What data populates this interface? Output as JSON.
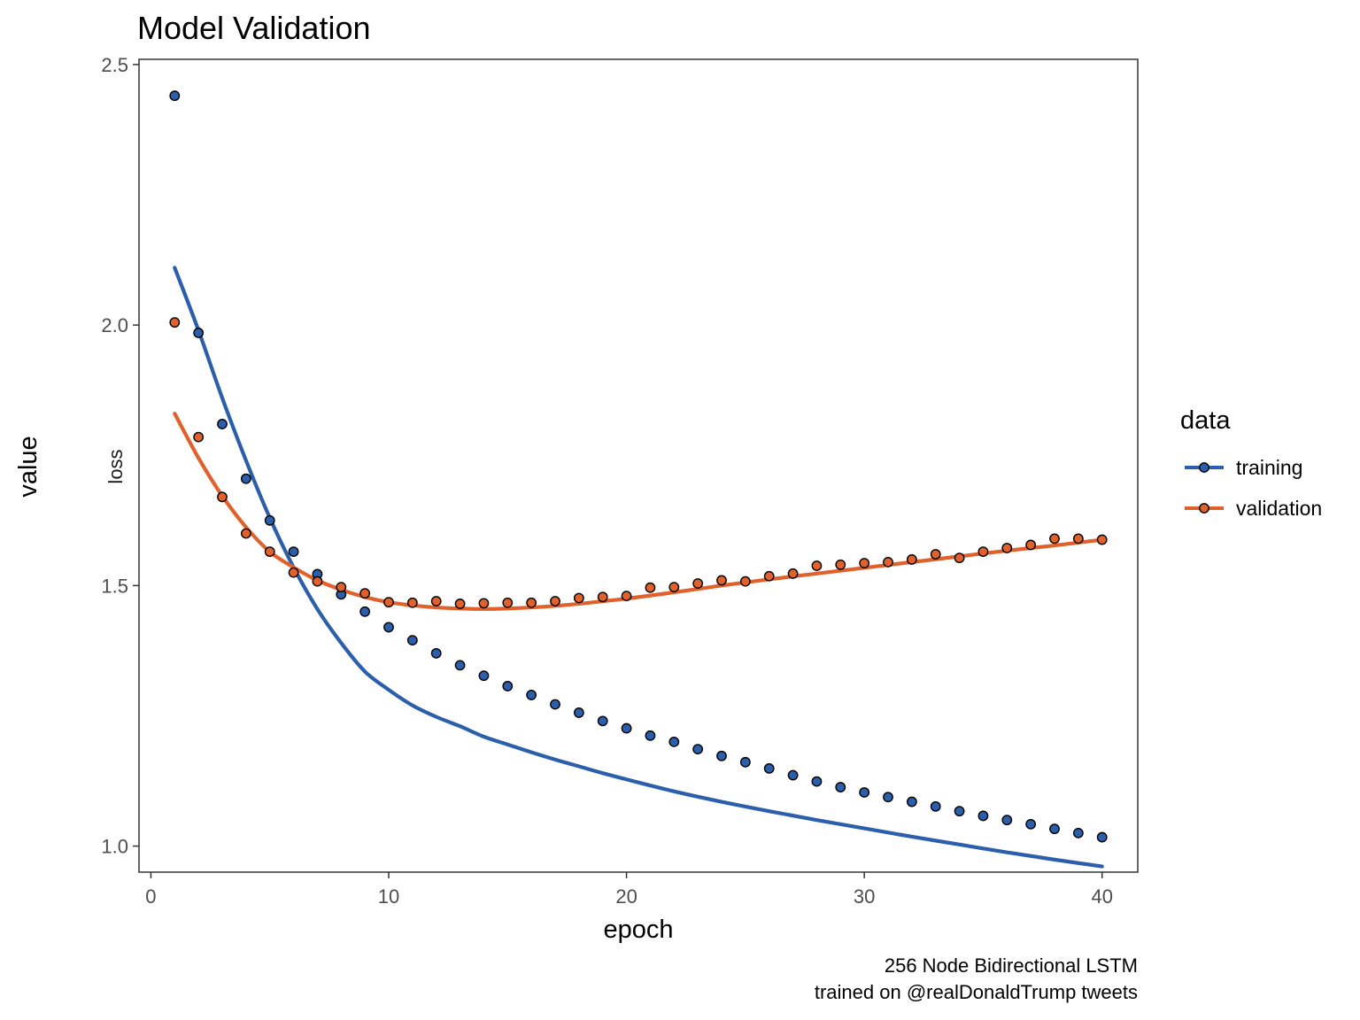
{
  "chart_data": {
    "type": "scatter",
    "title": "Model Validation",
    "xlabel": "epoch",
    "ylabel": "value",
    "facet_label": "loss",
    "xlim": [
      -0.5,
      41.5
    ],
    "ylim": [
      0.95,
      2.51
    ],
    "x_ticks": [
      0,
      10,
      20,
      30,
      40
    ],
    "y_ticks": [
      1.0,
      1.5,
      2.0,
      2.5
    ],
    "x_tick_labels": [
      "0",
      "10",
      "20",
      "30",
      "40"
    ],
    "y_tick_labels": [
      "1.0",
      "1.5",
      "2.0",
      "2.5"
    ],
    "grid": false,
    "legend": {
      "title": "data",
      "position": "right"
    },
    "caption": [
      "256 Node Bidirectional LSTM",
      "trained on @realDonaldTrump tweets"
    ],
    "series": [
      {
        "name": "training",
        "color": "#2b5fab",
        "x": [
          1,
          2,
          3,
          4,
          5,
          6,
          7,
          8,
          9,
          10,
          11,
          12,
          13,
          14,
          15,
          16,
          17,
          18,
          19,
          20,
          21,
          22,
          23,
          24,
          25,
          26,
          27,
          28,
          29,
          30,
          31,
          32,
          33,
          34,
          35,
          36,
          37,
          38,
          39,
          40
        ],
        "values": [
          2.44,
          1.985,
          1.81,
          1.705,
          1.625,
          1.565,
          1.522,
          1.483,
          1.45,
          1.42,
          1.395,
          1.37,
          1.347,
          1.327,
          1.307,
          1.29,
          1.272,
          1.256,
          1.24,
          1.226,
          1.212,
          1.2,
          1.186,
          1.173,
          1.161,
          1.149,
          1.136,
          1.124,
          1.113,
          1.103,
          1.094,
          1.085,
          1.076,
          1.067,
          1.058,
          1.05,
          1.042,
          1.033,
          1.025,
          1.017
        ],
        "smooth_x": [
          1,
          2,
          3,
          4,
          5,
          6,
          7,
          8,
          9,
          10,
          11,
          12,
          13,
          14,
          15,
          16,
          17,
          18,
          19,
          20,
          22,
          24,
          26,
          28,
          30,
          32,
          34,
          36,
          38,
          40
        ],
        "smooth_y": [
          2.11,
          1.99,
          1.86,
          1.74,
          1.63,
          1.535,
          1.455,
          1.39,
          1.335,
          1.3,
          1.27,
          1.248,
          1.23,
          1.21,
          1.195,
          1.18,
          1.166,
          1.153,
          1.14,
          1.128,
          1.105,
          1.085,
          1.067,
          1.05,
          1.034,
          1.018,
          1.003,
          0.988,
          0.974,
          0.961
        ]
      },
      {
        "name": "validation",
        "color": "#e0612b",
        "x": [
          1,
          2,
          3,
          4,
          5,
          6,
          7,
          8,
          9,
          10,
          11,
          12,
          13,
          14,
          15,
          16,
          17,
          18,
          19,
          20,
          21,
          22,
          23,
          24,
          25,
          26,
          27,
          28,
          29,
          30,
          31,
          32,
          33,
          34,
          35,
          36,
          37,
          38,
          39,
          40
        ],
        "values": [
          2.005,
          1.785,
          1.67,
          1.6,
          1.565,
          1.525,
          1.508,
          1.497,
          1.485,
          1.468,
          1.467,
          1.47,
          1.465,
          1.466,
          1.467,
          1.467,
          1.47,
          1.476,
          1.478,
          1.48,
          1.496,
          1.497,
          1.504,
          1.51,
          1.508,
          1.518,
          1.523,
          1.538,
          1.54,
          1.543,
          1.545,
          1.55,
          1.56,
          1.553,
          1.565,
          1.572,
          1.578,
          1.59,
          1.59,
          1.588
        ],
        "smooth_x": [
          1,
          2,
          3,
          4,
          5,
          6,
          7,
          8,
          9,
          10,
          11,
          12,
          13,
          14,
          15,
          16,
          17,
          18,
          20,
          22,
          24,
          26,
          28,
          30,
          32,
          34,
          36,
          38,
          40
        ],
        "smooth_y": [
          1.83,
          1.745,
          1.672,
          1.612,
          1.565,
          1.535,
          1.51,
          1.492,
          1.478,
          1.468,
          1.462,
          1.458,
          1.456,
          1.455,
          1.456,
          1.458,
          1.461,
          1.465,
          1.475,
          1.487,
          1.5,
          1.512,
          1.523,
          1.534,
          1.545,
          1.556,
          1.567,
          1.577,
          1.588
        ]
      }
    ]
  }
}
